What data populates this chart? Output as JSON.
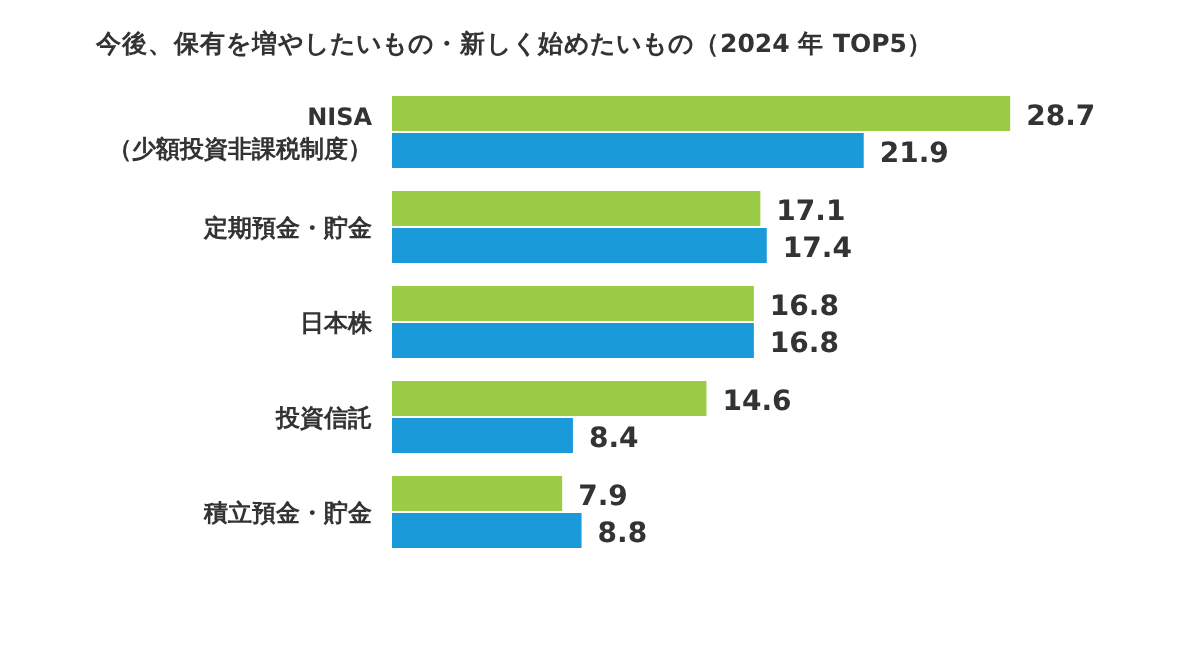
{
  "chart_data": {
    "type": "bar",
    "orientation": "horizontal",
    "title": "今後、保有を増やしたいもの・新しく始めたいもの（2024 年 TOP5）",
    "categories": [
      "NISA\n（少額投資非課税制度）",
      "定期預金・貯金",
      "日本株",
      "投資信託",
      "積立預金・貯金"
    ],
    "series": [
      {
        "color": "#9acd45",
        "values": [
          28.7,
          17.1,
          16.8,
          14.6,
          7.9
        ]
      },
      {
        "color": "#1a9ad8",
        "values": [
          21.9,
          17.4,
          16.8,
          8.4,
          8.8
        ]
      }
    ],
    "data_labels": true
  }
}
